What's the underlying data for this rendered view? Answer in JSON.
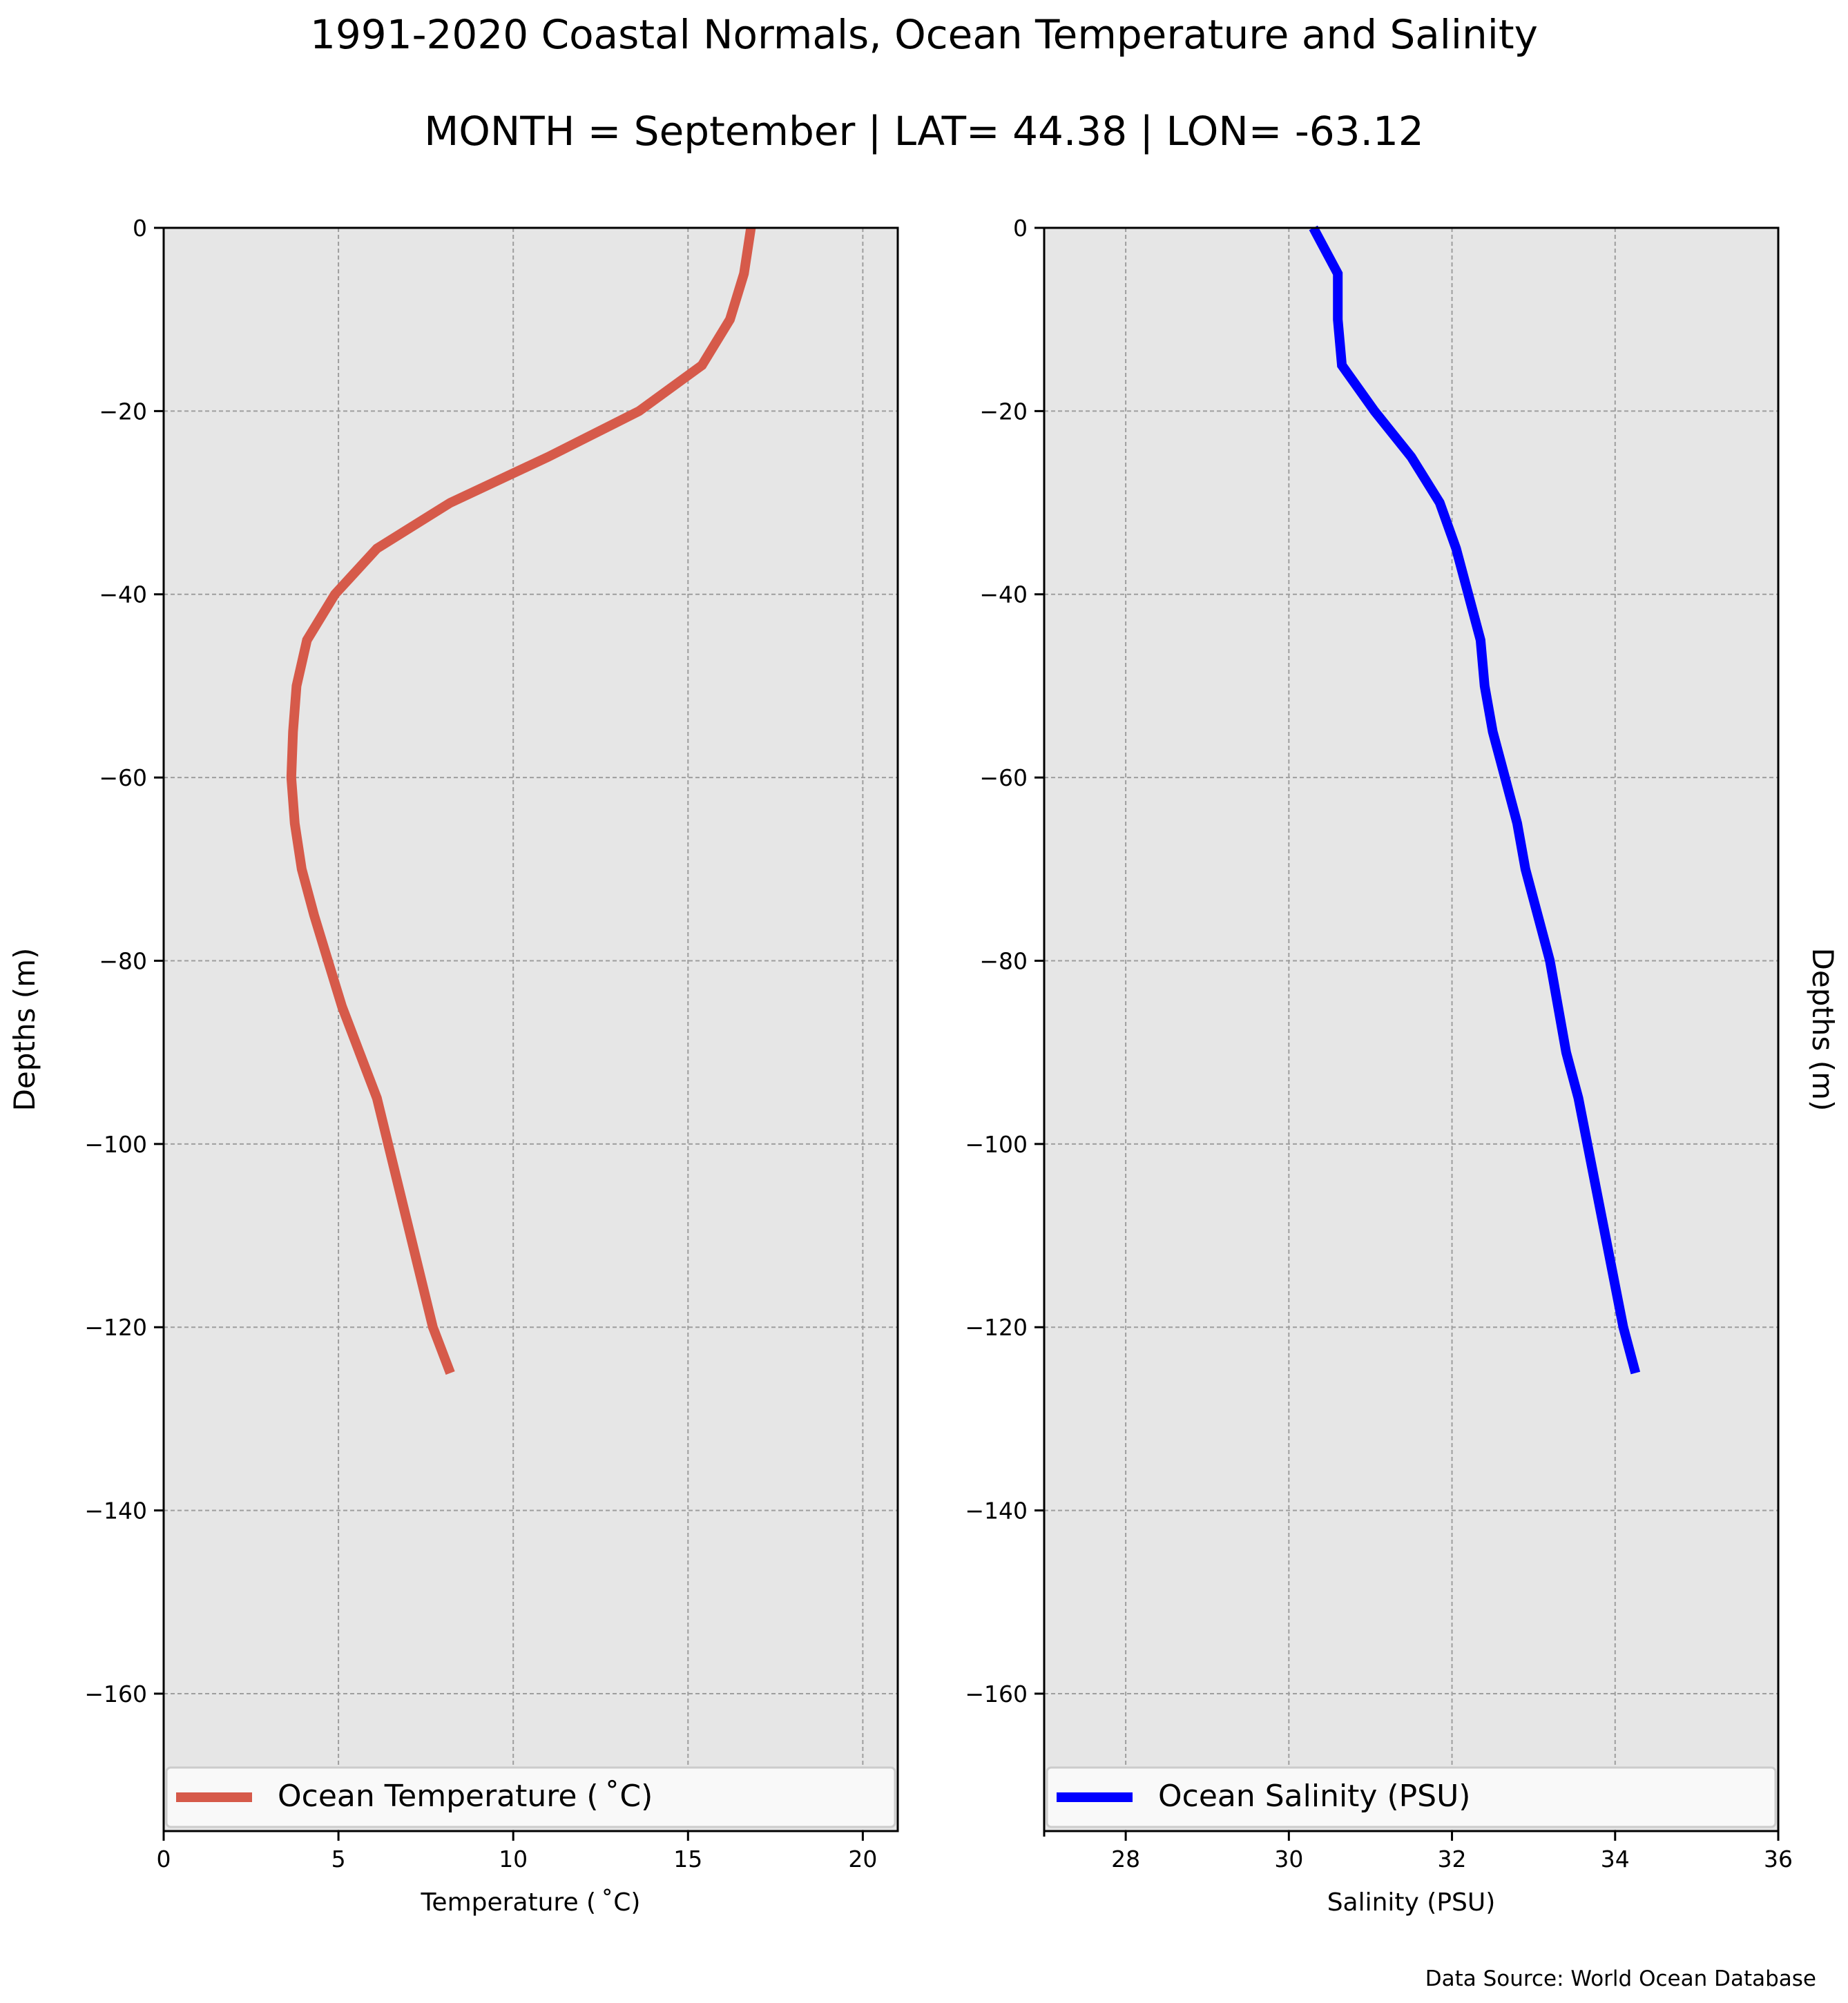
{
  "title": "1991-2020 Coastal Normals, Ocean Temperature and Salinity",
  "subtitle": "MONTH = September | LAT= 44.38 | LON= -63.12",
  "source_note": "Data Source: World Ocean Database",
  "colors": {
    "plot_background": "#e6e6e6",
    "grid": "#9e9e9e",
    "temperature_line": "#d65a4a",
    "salinity_line": "#0000ff"
  },
  "chart_data": [
    {
      "type": "line",
      "xlabel": "Temperature ($^\\circ$C)",
      "xlabel_display": "Temperature ( ˚C)",
      "ylabel": "Depths (m)",
      "ylabel_side": "left",
      "xlim": [
        0,
        21
      ],
      "ylim": [
        -175,
        0
      ],
      "xticks": [
        0,
        5,
        10,
        15,
        20
      ],
      "xtick_labels": [
        "0",
        "5",
        "10",
        "15",
        "20"
      ],
      "yticks": [
        0,
        -20,
        -40,
        -60,
        -80,
        -100,
        -120,
        -140,
        -160
      ],
      "ytick_labels": [
        "0",
        "−20",
        "−40",
        "−60",
        "−80",
        "−100",
        "−120",
        "−140",
        "−160"
      ],
      "grid": true,
      "legend_position": "bottom",
      "series": [
        {
          "name": "Ocean Temperature ( ˚C)",
          "color": "#d65a4a",
          "x": [
            16.8,
            16.6,
            16.2,
            15.4,
            13.6,
            11.0,
            8.2,
            6.1,
            4.9,
            4.1,
            3.8,
            3.7,
            3.65,
            3.75,
            3.95,
            4.3,
            4.7,
            5.1,
            5.6,
            6.1,
            7.7,
            8.2
          ],
          "y": [
            0,
            -5,
            -10,
            -15,
            -20,
            -25,
            -30,
            -35,
            -40,
            -45,
            -50,
            -55,
            -60,
            -65,
            -70,
            -75,
            -80,
            -85,
            -90,
            -95,
            -120,
            -125
          ]
        }
      ]
    },
    {
      "type": "line",
      "xlabel": "Salinity (PSU)",
      "ylabel": "Depths (m)",
      "ylabel_side": "right",
      "xlim": [
        27,
        36
      ],
      "ylim": [
        -175,
        0
      ],
      "xticks": [
        28,
        30,
        32,
        34,
        36
      ],
      "xtick_labels": [
        "28",
        "30",
        "32",
        "34",
        "36"
      ],
      "yticks": [
        0,
        -20,
        -40,
        -60,
        -80,
        -100,
        -120,
        -140,
        -160
      ],
      "ytick_labels": [
        "0",
        "−20",
        "−40",
        "−60",
        "−80",
        "−100",
        "−120",
        "−140",
        "−160"
      ],
      "grid": true,
      "legend_position": "bottom",
      "series": [
        {
          "name": "Ocean Salinity (PSU)",
          "color": "#0000ff",
          "x": [
            30.3,
            30.6,
            30.6,
            30.65,
            31.05,
            31.5,
            31.85,
            32.05,
            32.2,
            32.35,
            32.4,
            32.5,
            32.65,
            32.8,
            32.9,
            33.05,
            33.2,
            33.3,
            33.4,
            33.55,
            34.1,
            34.25
          ],
          "y": [
            0,
            -5,
            -10,
            -15,
            -20,
            -25,
            -30,
            -35,
            -40,
            -45,
            -50,
            -55,
            -60,
            -65,
            -70,
            -75,
            -80,
            -85,
            -90,
            -95,
            -120,
            -125
          ]
        }
      ]
    }
  ]
}
